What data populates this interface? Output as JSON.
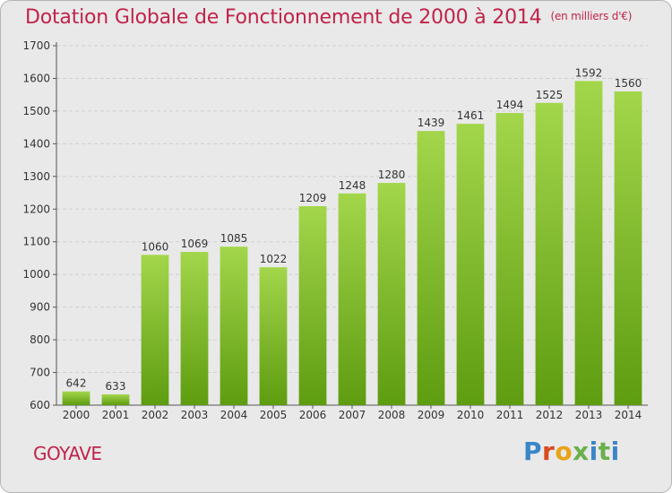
{
  "header": {
    "title": "Dotation Globale de Fonctionnement de 2000 à 2014",
    "unit": "(en milliers d'€)"
  },
  "footer": {
    "commune": "GOYAVE",
    "logo_text": "Proxiti",
    "logo_colors": [
      "#3a86c8",
      "#d94a1e",
      "#e8a317",
      "#6ab04c",
      "#3a86c8",
      "#6ab04c",
      "#3a86c8"
    ]
  },
  "colors": {
    "title": "#c0234a",
    "bar_light": "#a3d64b",
    "bar_dark": "#5e9c10",
    "background": "#e9e9e9",
    "grid": "#cfcfcf"
  },
  "chart_data": {
    "type": "bar",
    "title": "Dotation Globale de Fonctionnement de 2000 à 2014",
    "subtitle": "(en milliers d'€)",
    "categories": [
      "2000",
      "2001",
      "2002",
      "2003",
      "2004",
      "2005",
      "2006",
      "2007",
      "2008",
      "2009",
      "2010",
      "2011",
      "2012",
      "2013",
      "2014"
    ],
    "values": [
      642,
      633,
      1060,
      1069,
      1085,
      1022,
      1209,
      1248,
      1280,
      1439,
      1461,
      1494,
      1525,
      1592,
      1560
    ],
    "ylim": [
      600,
      1700
    ],
    "yticks": [
      600,
      700,
      800,
      900,
      1000,
      1100,
      1200,
      1300,
      1400,
      1500,
      1600,
      1700
    ],
    "grid": true,
    "data_labels": true
  }
}
